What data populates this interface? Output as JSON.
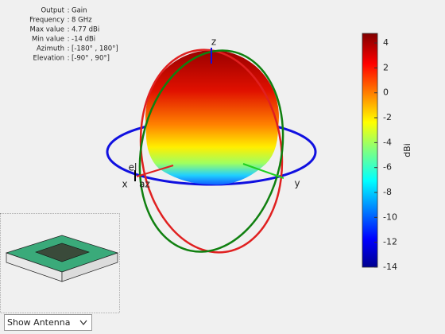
{
  "info": {
    "separator": ":",
    "rows": [
      [
        "Output",
        "Gain"
      ],
      [
        "Frequency",
        "8 GHz"
      ],
      [
        "Max value",
        "4.77 dBi"
      ],
      [
        "Min value",
        "-14 dBi"
      ],
      [
        "Azimuth",
        "[-180° , 180°]"
      ],
      [
        "Elevation",
        "[-90° , 90°]"
      ]
    ]
  },
  "axes_labels": {
    "x": "x",
    "y": "y",
    "z": "z",
    "az": "az",
    "el": "el"
  },
  "colorbar": {
    "label": "dBi",
    "lim": [
      -14,
      4.77
    ],
    "ticks": [
      -14,
      -12,
      -10,
      -8,
      -6,
      -4,
      -2,
      0,
      2,
      4
    ]
  },
  "dropdown": {
    "selected": "Show Antenna"
  }
}
